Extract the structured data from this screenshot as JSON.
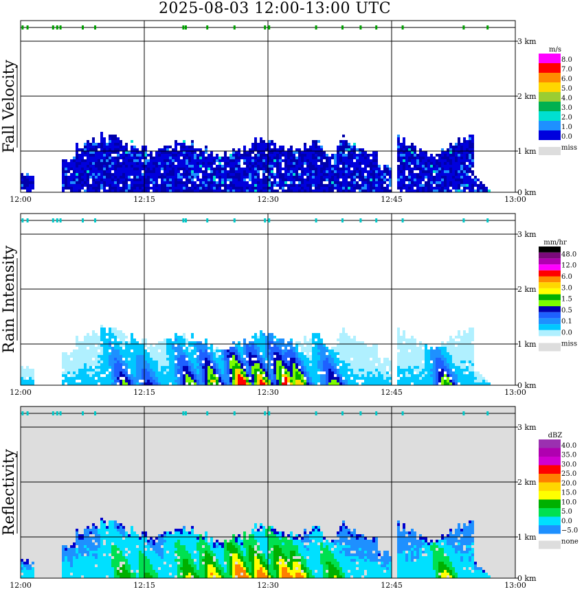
{
  "title": "2025-08-03   12:00-13:00 UTC",
  "x_ticks": [
    "12:00",
    "12:15",
    "12:30",
    "12:45",
    "13:00"
  ],
  "y_ticks": [
    "0 km",
    "1 km",
    "2 km",
    "3 km"
  ],
  "chart_data": [
    {
      "type": "heatmap",
      "title": "",
      "ylabel": "Fall Velocity",
      "unit": "m/s",
      "x_range": [
        "12:00",
        "13:00"
      ],
      "y_range_km": [
        0,
        3.3
      ],
      "grid": true,
      "legend_position": "right",
      "missing_label": "miss",
      "levels": [
        "8.0",
        "7.0",
        "6.0",
        "5.0",
        "4.0",
        "3.0",
        "2.0",
        "1.0",
        "0.0"
      ],
      "colors": [
        "#ff00ff",
        "#ff0000",
        "#ff8c00",
        "#ffd700",
        "#9acd32",
        "#00b050",
        "#00e0d0",
        "#1e90ff",
        "#0000dd",
        "#0000aa"
      ],
      "missing_color": "#dddddd",
      "background": "#ffffff",
      "top_marker_color": "#00a000",
      "top_markers_min": [
        0.2,
        0.8,
        3.9,
        4.4,
        4.8,
        7.5,
        9.0,
        19.7,
        20.0,
        22.6,
        25.9,
        29.6,
        30.1,
        35.8,
        39.0,
        41.2,
        43.1,
        46.3,
        53.7,
        56.6
      ]
    },
    {
      "type": "heatmap",
      "title": "",
      "ylabel": "Rain Intensity",
      "unit": "mm/hr",
      "x_range": [
        "12:00",
        "13:00"
      ],
      "y_range_km": [
        0,
        3.3
      ],
      "grid": true,
      "legend_position": "right",
      "missing_label": "miss",
      "levels": [
        "48.0",
        "12.0",
        "6.0",
        "3.0",
        "1.5",
        "0.5",
        "0.1",
        "0.0"
      ],
      "colors": [
        "#000000",
        "#7a0a7a",
        "#b000b0",
        "#ff00ff",
        "#ff0000",
        "#ff8c00",
        "#ffd700",
        "#ffff00",
        "#00b000",
        "#7cfc00",
        "#0000b0",
        "#1e60ff",
        "#1e90ff",
        "#00c8ff",
        "#b0f0ff"
      ],
      "missing_color": "#dddddd",
      "background": "#ffffff",
      "top_marker_color": "#00c8c8",
      "top_markers_min": [
        0.2,
        0.8,
        3.9,
        4.4,
        4.8,
        7.5,
        9.0,
        19.7,
        20.0,
        22.6,
        25.9,
        29.6,
        30.1,
        35.8,
        39.0,
        41.2,
        43.1,
        46.3,
        53.7,
        56.6
      ]
    },
    {
      "type": "heatmap",
      "title": "",
      "ylabel": "Reflectivity",
      "unit": "dBZ",
      "x_range": [
        "12:00",
        "13:00"
      ],
      "y_range_km": [
        0,
        3.3
      ],
      "grid": true,
      "legend_position": "right",
      "missing_label": "none",
      "levels": [
        "40.0",
        "35.0",
        "30.0",
        "25.0",
        "20.0",
        "15.0",
        "10.0",
        "5.0",
        "0.0",
        "−5.0"
      ],
      "colors": [
        "#9b30b0",
        "#b000b0",
        "#d000d0",
        "#ff0000",
        "#ff7f00",
        "#ffd700",
        "#ffff00",
        "#00b000",
        "#00e050",
        "#00e0ff",
        "#1e90ff",
        "#0000cc"
      ],
      "missing_color": "#dddddd",
      "background": "#dddddd",
      "top_marker_color": "#00c8c8",
      "top_markers_min": [
        0.2,
        0.8,
        3.9,
        4.4,
        4.8,
        7.5,
        9.0,
        19.7,
        20.0,
        22.6,
        25.9,
        29.6,
        30.1,
        35.8,
        39.0,
        41.2,
        43.1,
        46.3,
        53.7,
        56.6
      ]
    }
  ]
}
